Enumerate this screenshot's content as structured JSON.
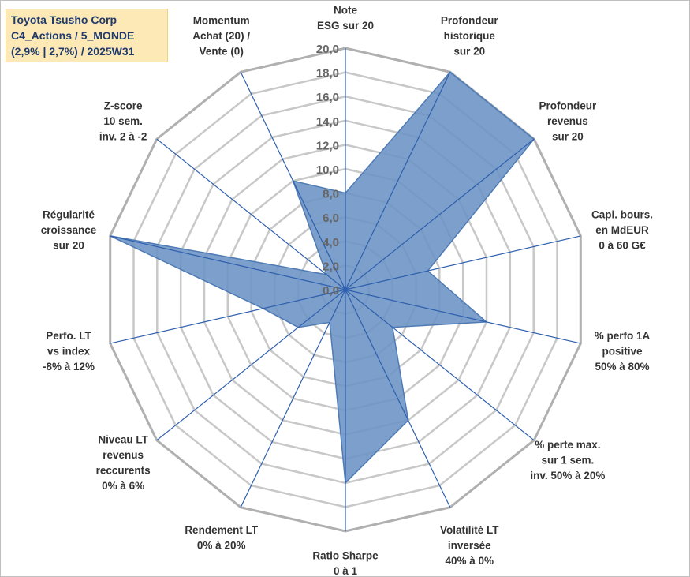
{
  "title": {
    "line1": "Toyota Tsusho Corp",
    "line2": "C4_Actions / 5_MONDE",
    "line3": "(2,9% | 2,7%) / 2025W31"
  },
  "colors": {
    "fill": "#6a93c4",
    "stroke": "#4f7bb5",
    "spoke": "#2e5fae",
    "grid": "#c8c8c8",
    "outer_grid": "#b0b0b0"
  },
  "chart_data": {
    "type": "radar",
    "rlim": [
      0,
      20
    ],
    "ticks": [
      "0,0",
      "2,0",
      "4,0",
      "6,0",
      "8,0",
      "10,0",
      "12,0",
      "14,0",
      "16,0",
      "18,0",
      "20,0"
    ],
    "grid": true,
    "categories": [
      [
        "Note",
        "ESG sur 20"
      ],
      [
        "Profondeur",
        "historique",
        "sur 20"
      ],
      [
        "Profondeur",
        "revenus",
        "sur 20"
      ],
      [
        "Capi. bours.",
        "en MdEUR",
        "0 à 60 G€"
      ],
      [
        "% perfo 1A",
        "positive",
        "50% à 80%"
      ],
      [
        "% perte max.",
        "sur 1 sem.",
        "inv. 50% à 20%"
      ],
      [
        "Volatilité LT",
        "inversée",
        "40% à 0%"
      ],
      [
        "Ratio Sharpe",
        "0 à 1"
      ],
      [
        "Rendement LT",
        "0% à 20%"
      ],
      [
        "Niveau LT",
        "revenus",
        "reccurents",
        "0% à 6%"
      ],
      [
        "Perfo. LT",
        "vs index",
        "-8% à 12%"
      ],
      [
        "Régularité",
        "croissance",
        "sur 20"
      ],
      [
        "Z-score",
        "10 sem.",
        "inv. 2 à -2"
      ],
      [
        "Momentum",
        "Achat (20) /",
        "Vente (0)"
      ]
    ],
    "series": [
      {
        "values": [
          8.0,
          20.0,
          20.0,
          7.0,
          12.0,
          5.0,
          12.0,
          16.0,
          3.0,
          5.0,
          7.0,
          20.0,
          2.0,
          10.0
        ]
      }
    ]
  }
}
